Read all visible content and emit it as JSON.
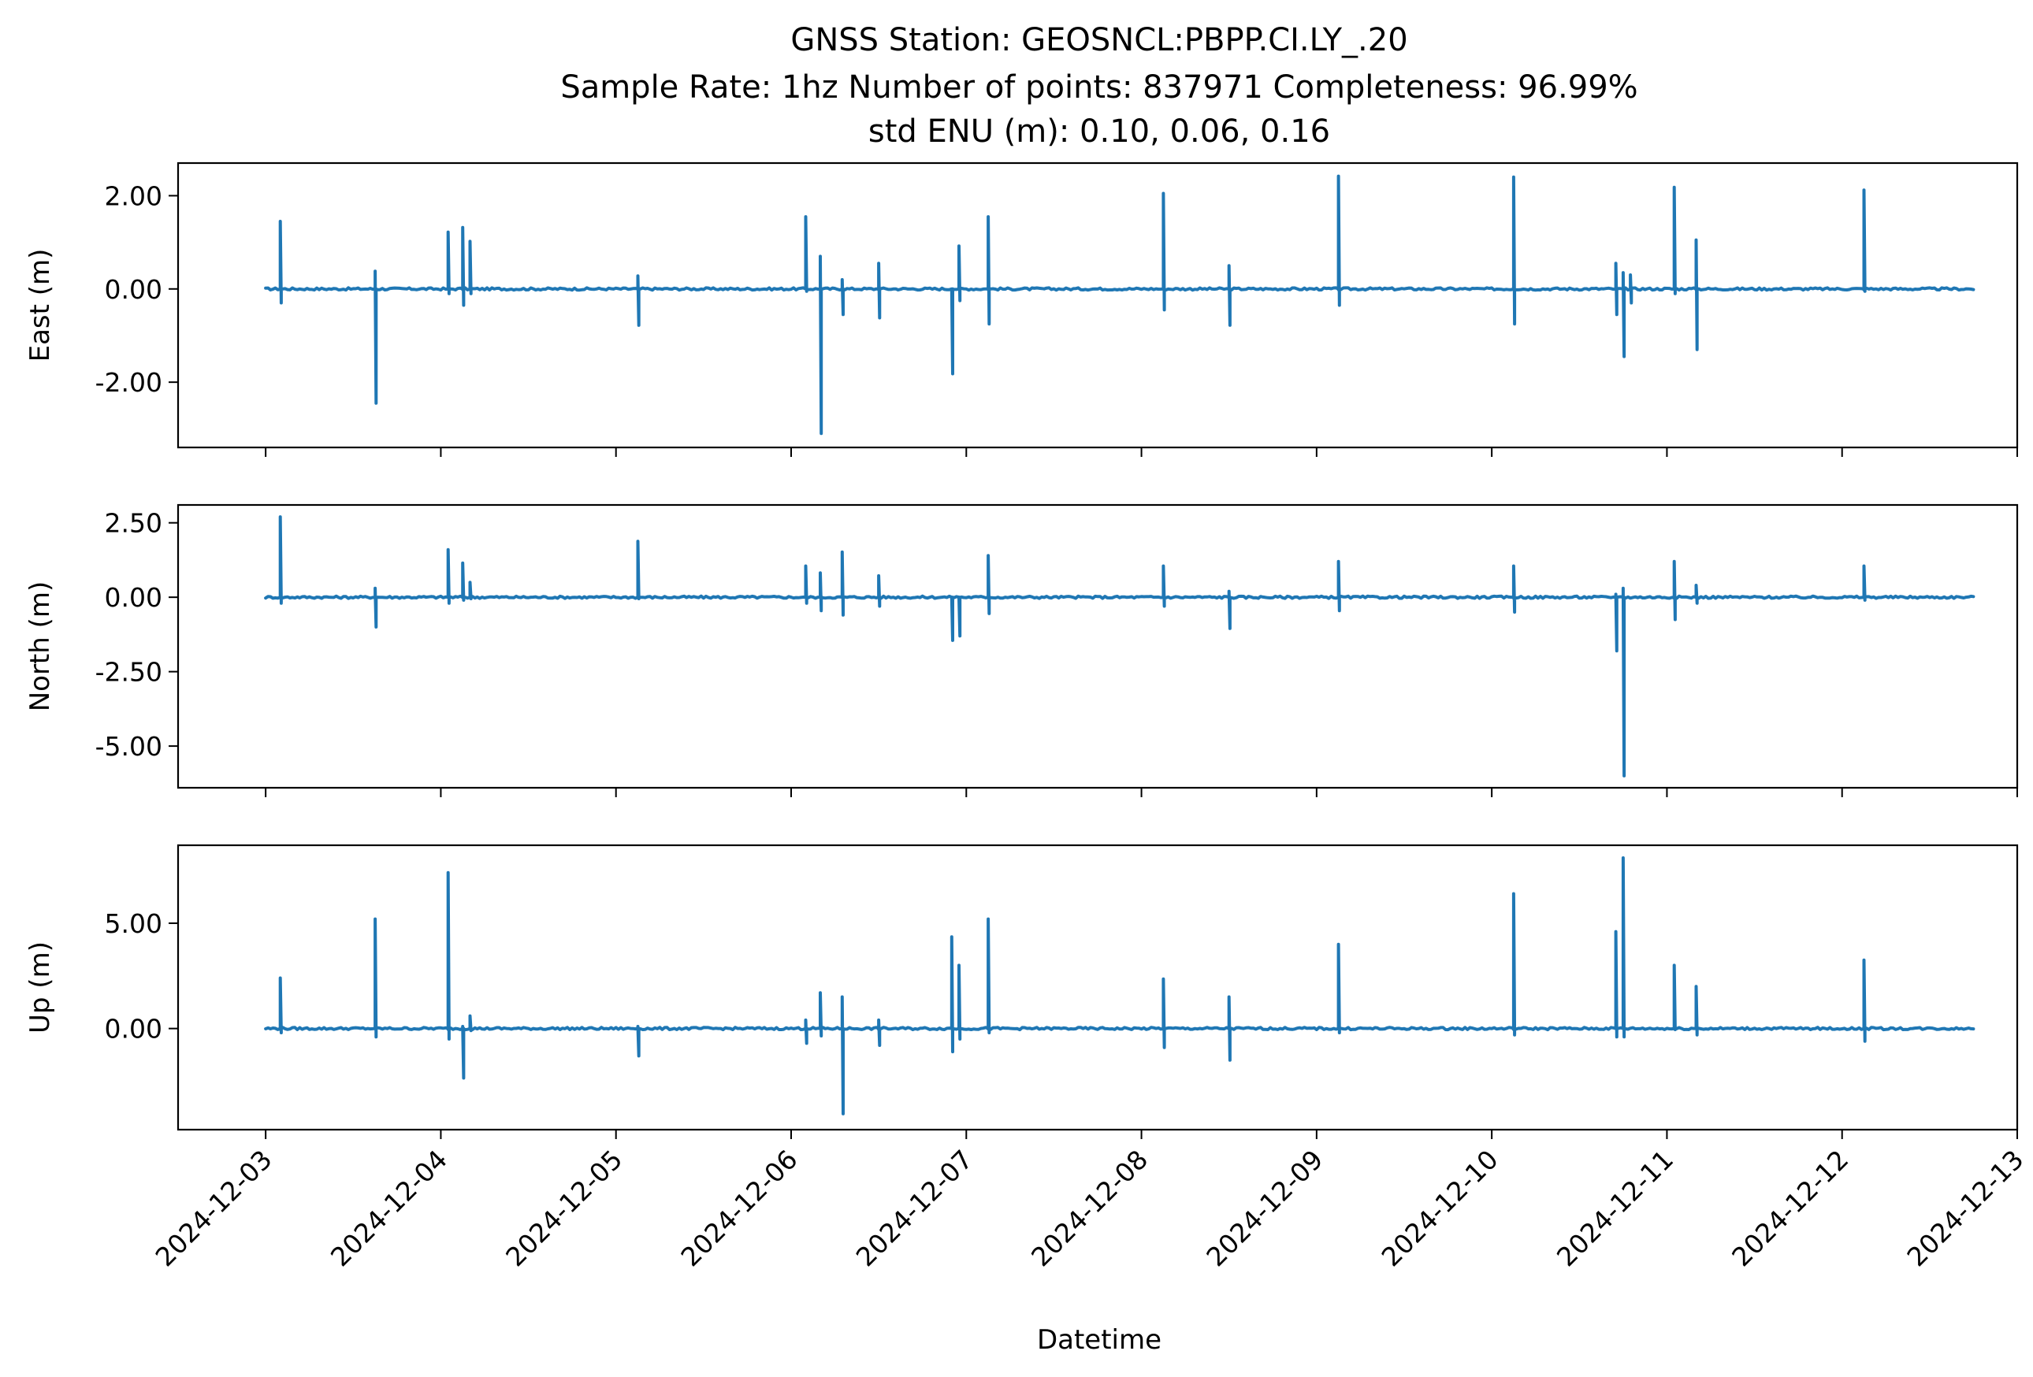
{
  "chart_data": {
    "type": "line",
    "title": {
      "line1": "GNSS Station: GEOSNCL:PBPP.CI.LY_.20",
      "line2": "Sample Rate: 1hz   Number of points: 837971    Completeness:  96.99%",
      "line3": "std ENU (m):  0.10, 0.06, 0.16"
    },
    "xlabel": "Datetime",
    "x_ticks": [
      "2024-12-03",
      "2024-12-04",
      "2024-12-05",
      "2024-12-06",
      "2024-12-07",
      "2024-12-08",
      "2024-12-09",
      "2024-12-10",
      "2024-12-11",
      "2024-12-12",
      "2024-12-13"
    ],
    "xlim": [
      "2024-12-02 12:00",
      "2024-12-13 00:00"
    ],
    "data_range": [
      "2024-12-03 00:00",
      "2024-12-12 18:00"
    ],
    "color": "#1f77b4",
    "grid": false,
    "legend": "none",
    "panels": [
      {
        "ylabel": "East (m)",
        "ylim": [
          -3.4,
          2.7
        ],
        "y_ticks": [
          2.0,
          0.0,
          -2.0
        ],
        "y_tick_labels": [
          "2.00",
          "0.00",
          "-2.00"
        ],
        "baseline": 0.0,
        "spikes": [
          {
            "t": "2024-12-03 02:00",
            "max": 1.45,
            "min": -0.3
          },
          {
            "t": "2024-12-03 15:00",
            "max": 0.38,
            "min": -2.45
          },
          {
            "t": "2024-12-04 01:00",
            "max": 1.22,
            "min": -0.1
          },
          {
            "t": "2024-12-04 03:00",
            "max": 1.32,
            "min": -0.35
          },
          {
            "t": "2024-12-04 04:00",
            "max": 1.02,
            "min": -0.1
          },
          {
            "t": "2024-12-05 03:00",
            "max": 0.28,
            "min": -0.78
          },
          {
            "t": "2024-12-06 02:00",
            "max": 1.55,
            "min": -0.05
          },
          {
            "t": "2024-12-06 04:00",
            "max": 0.7,
            "min": -3.1
          },
          {
            "t": "2024-12-06 07:00",
            "max": 0.2,
            "min": -0.55
          },
          {
            "t": "2024-12-06 12:00",
            "max": 0.55,
            "min": -0.62
          },
          {
            "t": "2024-12-06 22:00",
            "max": 0.0,
            "min": -1.82
          },
          {
            "t": "2024-12-06 23:00",
            "max": 0.92,
            "min": -0.25
          },
          {
            "t": "2024-12-07 03:00",
            "max": 1.55,
            "min": -0.75
          },
          {
            "t": "2024-12-08 03:00",
            "max": 2.05,
            "min": -0.45
          },
          {
            "t": "2024-12-08 12:00",
            "max": 0.5,
            "min": -0.78
          },
          {
            "t": "2024-12-09 03:00",
            "max": 2.42,
            "min": -0.35
          },
          {
            "t": "2024-12-10 03:00",
            "max": 2.4,
            "min": -0.75
          },
          {
            "t": "2024-12-10 17:00",
            "max": 0.55,
            "min": -0.55
          },
          {
            "t": "2024-12-10 18:00",
            "max": 0.35,
            "min": -1.45
          },
          {
            "t": "2024-12-10 19:00",
            "max": 0.3,
            "min": -0.3
          },
          {
            "t": "2024-12-11 01:00",
            "max": 2.18,
            "min": -0.1
          },
          {
            "t": "2024-12-11 04:00",
            "max": 1.05,
            "min": -1.3
          },
          {
            "t": "2024-12-12 03:00",
            "max": 2.12,
            "min": -0.05
          }
        ]
      },
      {
        "ylabel": "North (m)",
        "ylim": [
          -6.4,
          3.1
        ],
        "y_ticks": [
          2.5,
          0.0,
          -2.5,
          -5.0
        ],
        "y_tick_labels": [
          "2.50",
          "0.00",
          "-2.50",
          "-5.00"
        ],
        "baseline": 0.0,
        "spikes": [
          {
            "t": "2024-12-03 02:00",
            "max": 2.7,
            "min": -0.2
          },
          {
            "t": "2024-12-03 15:00",
            "max": 0.3,
            "min": -1.0
          },
          {
            "t": "2024-12-04 01:00",
            "max": 1.6,
            "min": -0.2
          },
          {
            "t": "2024-12-04 03:00",
            "max": 1.15,
            "min": -0.1
          },
          {
            "t": "2024-12-04 04:00",
            "max": 0.5,
            "min": -0.05
          },
          {
            "t": "2024-12-05 03:00",
            "max": 1.88,
            "min": -0.05
          },
          {
            "t": "2024-12-06 02:00",
            "max": 1.05,
            "min": -0.2
          },
          {
            "t": "2024-12-06 04:00",
            "max": 0.82,
            "min": -0.45
          },
          {
            "t": "2024-12-06 07:00",
            "max": 1.52,
            "min": -0.6
          },
          {
            "t": "2024-12-06 12:00",
            "max": 0.72,
            "min": -0.3
          },
          {
            "t": "2024-12-06 22:00",
            "max": 0.0,
            "min": -1.45
          },
          {
            "t": "2024-12-06 23:00",
            "max": 0.0,
            "min": -1.3
          },
          {
            "t": "2024-12-07 03:00",
            "max": 1.4,
            "min": -0.55
          },
          {
            "t": "2024-12-08 03:00",
            "max": 1.05,
            "min": -0.3
          },
          {
            "t": "2024-12-08 12:00",
            "max": 0.2,
            "min": -1.05
          },
          {
            "t": "2024-12-09 03:00",
            "max": 1.2,
            "min": -0.45
          },
          {
            "t": "2024-12-10 03:00",
            "max": 1.05,
            "min": -0.5
          },
          {
            "t": "2024-12-10 17:00",
            "max": 0.1,
            "min": -1.8
          },
          {
            "t": "2024-12-10 18:00",
            "max": 0.3,
            "min": -6.0
          },
          {
            "t": "2024-12-11 01:00",
            "max": 1.2,
            "min": -0.75
          },
          {
            "t": "2024-12-11 04:00",
            "max": 0.4,
            "min": -0.2
          },
          {
            "t": "2024-12-12 03:00",
            "max": 1.05,
            "min": -0.1
          }
        ]
      },
      {
        "ylabel": "Up (m)",
        "ylim": [
          -4.8,
          8.7
        ],
        "y_ticks": [
          5.0,
          0.0
        ],
        "y_tick_labels": [
          "5.00",
          "0.00"
        ],
        "baseline": 0.0,
        "spikes": [
          {
            "t": "2024-12-03 02:00",
            "max": 2.4,
            "min": -0.2
          },
          {
            "t": "2024-12-03 15:00",
            "max": 5.2,
            "min": -0.4
          },
          {
            "t": "2024-12-04 01:00",
            "max": 7.4,
            "min": -0.5
          },
          {
            "t": "2024-12-04 03:00",
            "max": 0.1,
            "min": -2.35
          },
          {
            "t": "2024-12-04 04:00",
            "max": 0.6,
            "min": -0.1
          },
          {
            "t": "2024-12-05 03:00",
            "max": 0.1,
            "min": -1.3
          },
          {
            "t": "2024-12-06 02:00",
            "max": 0.4,
            "min": -0.7
          },
          {
            "t": "2024-12-06 04:00",
            "max": 1.7,
            "min": -0.35
          },
          {
            "t": "2024-12-06 07:00",
            "max": 1.5,
            "min": -4.05
          },
          {
            "t": "2024-12-06 12:00",
            "max": 0.4,
            "min": -0.8
          },
          {
            "t": "2024-12-06 22:00",
            "max": 4.35,
            "min": -1.1
          },
          {
            "t": "2024-12-06 23:00",
            "max": 3.0,
            "min": -0.5
          },
          {
            "t": "2024-12-07 03:00",
            "max": 5.2,
            "min": -0.2
          },
          {
            "t": "2024-12-08 03:00",
            "max": 2.35,
            "min": -0.9
          },
          {
            "t": "2024-12-08 12:00",
            "max": 1.5,
            "min": -1.5
          },
          {
            "t": "2024-12-09 03:00",
            "max": 4.0,
            "min": -0.2
          },
          {
            "t": "2024-12-10 03:00",
            "max": 6.4,
            "min": -0.3
          },
          {
            "t": "2024-12-10 17:00",
            "max": 4.6,
            "min": -0.4
          },
          {
            "t": "2024-12-10 18:00",
            "max": 8.1,
            "min": -0.4
          },
          {
            "t": "2024-12-11 01:00",
            "max": 3.0,
            "min": -0.05
          },
          {
            "t": "2024-12-11 04:00",
            "max": 2.0,
            "min": -0.3
          },
          {
            "t": "2024-12-12 03:00",
            "max": 3.25,
            "min": -0.6
          }
        ]
      }
    ]
  }
}
